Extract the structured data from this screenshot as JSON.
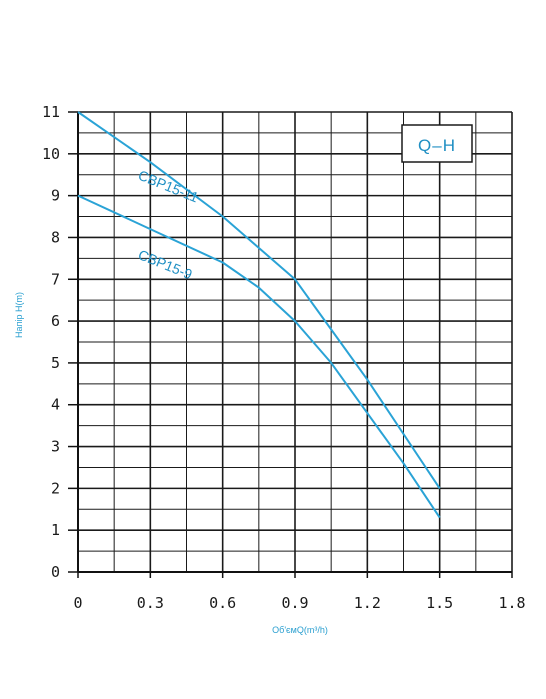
{
  "chart_data": {
    "type": "line",
    "title": "",
    "legend_box": "Q–H",
    "xlabel": "Об'ємQ(m³/h)",
    "ylabel": "Напір H(m)",
    "xlim": [
      0,
      1.8
    ],
    "ylim": [
      0,
      11
    ],
    "x_ticks": [
      "0",
      "0.3",
      "0.6",
      "0.9",
      "1.2",
      "1.5",
      "1.8"
    ],
    "y_ticks": [
      "0",
      "1",
      "2",
      "3",
      "4",
      "5",
      "6",
      "7",
      "8",
      "9",
      "10",
      "11"
    ],
    "grid": true,
    "series": [
      {
        "name": "CBP15-11",
        "color": "#2aa3d6",
        "points": [
          [
            0,
            11
          ],
          [
            0.3,
            9.8
          ],
          [
            0.6,
            8.5
          ],
          [
            0.9,
            7.0
          ],
          [
            1.05,
            5.8
          ],
          [
            1.2,
            4.6
          ],
          [
            1.35,
            3.3
          ],
          [
            1.5,
            2.0
          ]
        ]
      },
      {
        "name": "CBP15-9",
        "color": "#2aa3d6",
        "points": [
          [
            0,
            9
          ],
          [
            0.3,
            8.2
          ],
          [
            0.6,
            7.4
          ],
          [
            0.75,
            6.8
          ],
          [
            0.9,
            6.0
          ],
          [
            1.05,
            5.0
          ],
          [
            1.2,
            3.8
          ],
          [
            1.35,
            2.6
          ],
          [
            1.5,
            1.3
          ]
        ]
      }
    ]
  }
}
